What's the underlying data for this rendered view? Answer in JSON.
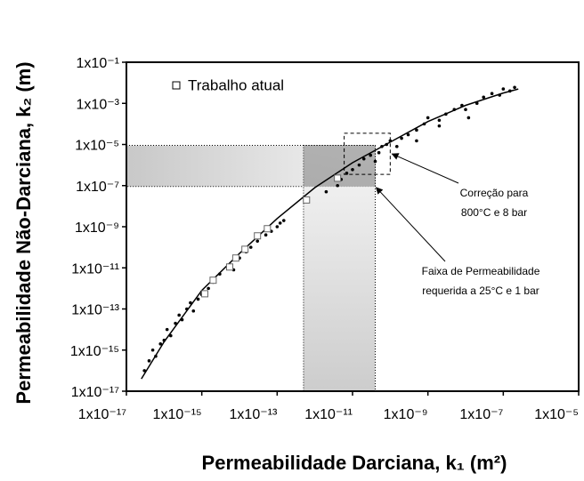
{
  "chart_data": {
    "type": "scatter",
    "xlabel": "Permeabilidade Darciana, k₁ (m²)",
    "ylabel": "Permeabilidade Não-Darciana, k₂ (m)",
    "xscale": "log",
    "yscale": "log",
    "xlim": [
      1e-17,
      1e-05
    ],
    "ylim": [
      1e-17,
      0.1
    ],
    "xticks": [
      {
        "value": 1e-17,
        "label": "1x10⁻¹⁷"
      },
      {
        "value": 1e-15,
        "label": "1x10⁻¹⁵"
      },
      {
        "value": 1e-13,
        "label": "1x10⁻¹³"
      },
      {
        "value": 1e-11,
        "label": "1x10⁻¹¹"
      },
      {
        "value": 1e-09,
        "label": "1x10⁻⁹"
      },
      {
        "value": 1e-07,
        "label": "1x10⁻⁷"
      },
      {
        "value": 1e-05,
        "label": "1x10⁻⁵"
      }
    ],
    "yticks": [
      {
        "value": 0.1,
        "label": "1x10⁻¹"
      },
      {
        "value": 0.001,
        "label": "1x10⁻³"
      },
      {
        "value": 1e-05,
        "label": "1x10⁻⁵"
      },
      {
        "value": 1e-07,
        "label": "1x10⁻⁷"
      },
      {
        "value": 1e-09,
        "label": "1x10⁻⁹"
      },
      {
        "value": 1e-11,
        "label": "1x10⁻¹¹"
      },
      {
        "value": 1e-13,
        "label": "1x10⁻¹³"
      },
      {
        "value": 1e-15,
        "label": "1x10⁻¹⁵"
      },
      {
        "value": 1e-17,
        "label": "1x10⁻¹⁷"
      }
    ],
    "legend": "upper left",
    "series": [
      {
        "name": "Trabalho atual",
        "marker": "square",
        "color": "#ffffff",
        "x": [
          1.2e-15,
          2e-15,
          5.5e-15,
          8e-15,
          1.4e-14,
          3e-14,
          5.5e-14,
          6e-13,
          4e-12
        ],
        "values": [
          5.5e-13,
          2.5e-12,
          1.1e-11,
          3e-11,
          8e-11,
          3.6e-10,
          8e-10,
          2e-08,
          2.3e-07
        ]
      },
      {
        "marker": "dot",
        "color": "#000000",
        "x": [
          3e-17,
          4e-17,
          5e-17,
          6e-17,
          8e-17,
          1e-16,
          1.2e-16,
          1.5e-16,
          2e-16,
          2.5e-16,
          3e-16,
          4e-16,
          5e-16,
          6e-16,
          8e-16,
          1e-15,
          1.5e-15,
          2e-15,
          3e-15,
          5e-15,
          7e-15,
          1e-14,
          1.5e-14,
          2e-14,
          3e-14,
          5e-14,
          7e-14,
          1e-13,
          1.2e-13,
          1.5e-13,
          2e-12,
          4e-12,
          5e-12,
          7e-12,
          1e-11,
          1.5e-11,
          2e-11,
          3e-11,
          4e-11,
          5e-11,
          6e-11,
          8e-11,
          1e-10,
          1.5e-10,
          2e-10,
          3e-10,
          5e-10,
          8e-10,
          1e-09,
          2e-09,
          3e-09,
          5e-09,
          8e-09,
          1e-08,
          2e-08,
          3e-08,
          5e-08,
          8e-08,
          1e-07,
          1.5e-07,
          2e-07,
          1.2e-08,
          5e-10,
          2e-09
        ],
        "values": [
          1e-16,
          3e-16,
          1e-15,
          5e-16,
          2e-15,
          3e-15,
          1e-14,
          5e-15,
          2e-14,
          5e-14,
          3e-14,
          1e-13,
          2e-13,
          8e-14,
          3e-13,
          5e-13,
          1e-12,
          2e-12,
          5e-12,
          1e-11,
          8e-12,
          3e-11,
          6e-11,
          1e-10,
          2e-10,
          4e-10,
          6e-10,
          1e-09,
          1.5e-09,
          2e-09,
          5e-08,
          1e-07,
          2e-07,
          4e-07,
          6e-07,
          1e-06,
          2e-06,
          3e-06,
          1.5e-06,
          4e-06,
          8e-06,
          1e-05,
          1.5e-05,
          8e-06,
          2e-05,
          3e-05,
          5e-05,
          0.0001,
          0.0002,
          0.00015,
          0.0003,
          0.0005,
          0.0008,
          0.0005,
          0.001,
          0.002,
          0.003,
          0.0025,
          0.005,
          0.004,
          0.006,
          0.0002,
          1.5e-05,
          8e-05
        ]
      },
      {
        "marker": "line",
        "color": "#000000",
        "x": [
          2.5e-17,
          1e-16,
          1e-15,
          1e-14,
          1e-13,
          1e-12,
          1e-11,
          1e-10,
          1e-09,
          1e-08,
          1e-07,
          2.5e-07
        ],
        "values": [
          4e-17,
          2.5e-15,
          8e-13,
          5e-11,
          2.5e-09,
          8e-08,
          1.3e-06,
          1.3e-05,
          0.00013,
          0.0008,
          0.0032,
          0.005
        ]
      }
    ],
    "shaded_ranges": {
      "x": [
        5e-13,
        4e-11
      ],
      "y": [
        9e-08,
        9e-06
      ]
    },
    "dashed_box": {
      "x": [
        6e-12,
        1e-10
      ],
      "y": [
        3.5e-07,
        3.5e-05
      ]
    },
    "annotations": [
      {
        "lines": [
          "Correção para",
          "800°C e 8 bar"
        ]
      },
      {
        "lines": [
          "Faixa de Permeabilidade",
          "requerida a 25°C e 1 bar"
        ]
      }
    ]
  }
}
